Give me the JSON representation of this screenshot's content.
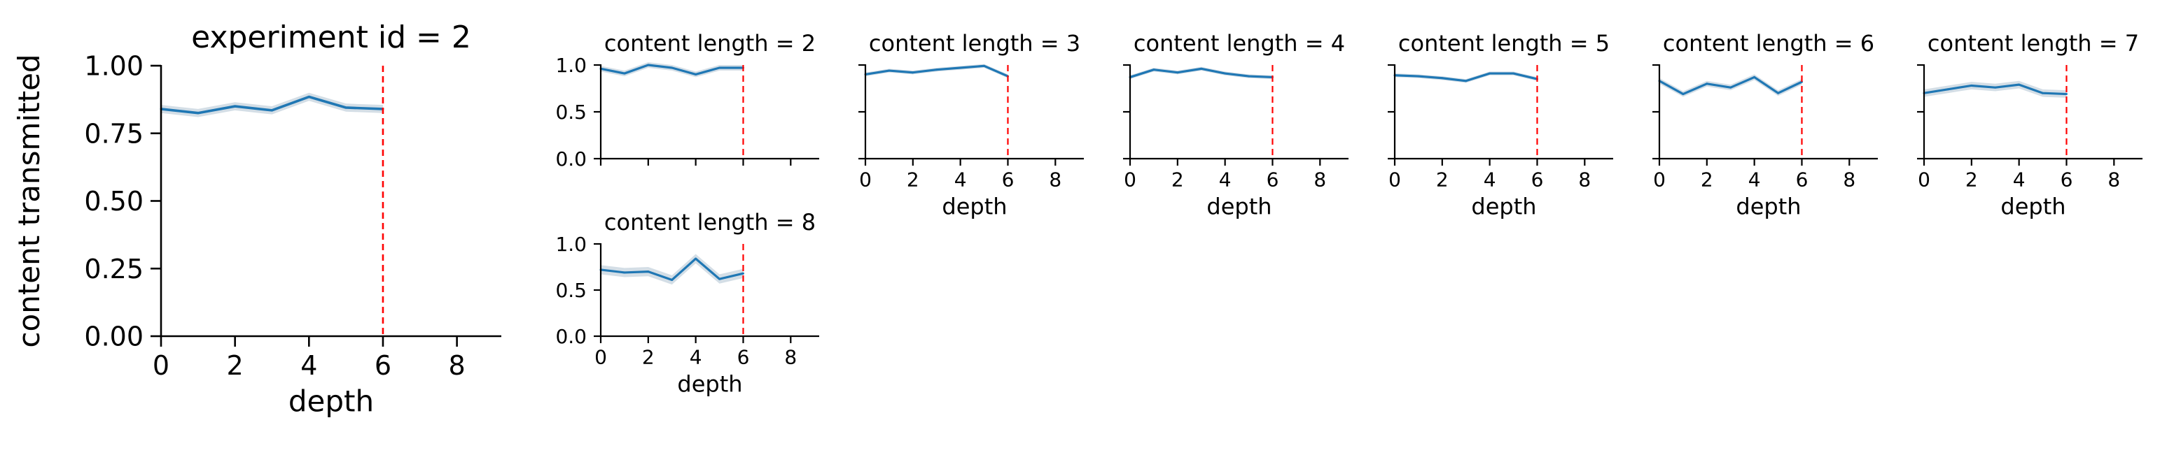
{
  "chart_data": [
    {
      "type": "line",
      "title": "experiment id = 2",
      "xlabel": "depth",
      "ylabel": "content transmitted",
      "xlim": [
        0,
        9.2
      ],
      "ylim": [
        0,
        1
      ],
      "xticks": [
        0,
        2,
        4,
        6,
        8
      ],
      "xtick_labels": [
        "0",
        "2",
        "4",
        "6",
        "8"
      ],
      "yticks": [
        0,
        0.25,
        0.5,
        0.75,
        1
      ],
      "ytick_labels": [
        "0.00",
        "0.25",
        "0.50",
        "0.75",
        "1.00"
      ],
      "vline": 6,
      "x": [
        0,
        1,
        2,
        3,
        4,
        5,
        6
      ],
      "y": [
        0.84,
        0.825,
        0.85,
        0.835,
        0.885,
        0.845,
        0.84
      ],
      "band": 0.015,
      "colors": {
        "line": "#1f77b4",
        "band": "#c6d3de",
        "vline": "#ff0000"
      }
    },
    {
      "type": "line",
      "title": "content length = 2",
      "xlabel": "",
      "ylabel": "",
      "xlim": [
        0,
        9.2
      ],
      "ylim": [
        0,
        1
      ],
      "xticks": [
        0,
        2,
        4,
        6,
        8
      ],
      "xtick_labels": [],
      "yticks": [
        0,
        0.5,
        1
      ],
      "ytick_labels": [
        "0.0",
        "0.5",
        "1.0"
      ],
      "vline": 6,
      "x": [
        0,
        1,
        2,
        3,
        4,
        5,
        6
      ],
      "y": [
        0.96,
        0.91,
        1.0,
        0.97,
        0.9,
        0.97,
        0.97
      ],
      "band": 0.03,
      "colors": {
        "line": "#1f77b4",
        "band": "#c6d3de",
        "vline": "#ff0000"
      }
    },
    {
      "type": "line",
      "title": "content length = 3",
      "xlabel": "depth",
      "ylabel": "",
      "xlim": [
        0,
        9.2
      ],
      "ylim": [
        0,
        1
      ],
      "xticks": [
        0,
        2,
        4,
        6,
        8
      ],
      "xtick_labels": [
        "0",
        "2",
        "4",
        "6",
        "8"
      ],
      "yticks": [
        0,
        0.5,
        1
      ],
      "ytick_labels": [],
      "vline": 6,
      "x": [
        0,
        1,
        2,
        3,
        4,
        5,
        6
      ],
      "y": [
        0.9,
        0.94,
        0.92,
        0.95,
        0.97,
        0.99,
        0.88
      ],
      "band": 0.02,
      "colors": {
        "line": "#1f77b4",
        "band": "#c6d3de",
        "vline": "#ff0000"
      }
    },
    {
      "type": "line",
      "title": "content length = 4",
      "xlabel": "depth",
      "ylabel": "",
      "xlim": [
        0,
        9.2
      ],
      "ylim": [
        0,
        1
      ],
      "xticks": [
        0,
        2,
        4,
        6,
        8
      ],
      "xtick_labels": [
        "0",
        "2",
        "4",
        "6",
        "8"
      ],
      "yticks": [
        0,
        0.5,
        1
      ],
      "ytick_labels": [],
      "vline": 6,
      "x": [
        0,
        1,
        2,
        3,
        4,
        5,
        6
      ],
      "y": [
        0.87,
        0.95,
        0.92,
        0.96,
        0.91,
        0.88,
        0.87
      ],
      "band": 0.02,
      "colors": {
        "line": "#1f77b4",
        "band": "#c6d3de",
        "vline": "#ff0000"
      }
    },
    {
      "type": "line",
      "title": "content length = 5",
      "xlabel": "depth",
      "ylabel": "",
      "xlim": [
        0,
        9.2
      ],
      "ylim": [
        0,
        1
      ],
      "xticks": [
        0,
        2,
        4,
        6,
        8
      ],
      "xtick_labels": [
        "0",
        "2",
        "4",
        "6",
        "8"
      ],
      "yticks": [
        0,
        0.5,
        1
      ],
      "ytick_labels": [],
      "vline": 6,
      "x": [
        0,
        1,
        2,
        3,
        4,
        5,
        6
      ],
      "y": [
        0.89,
        0.88,
        0.86,
        0.83,
        0.91,
        0.91,
        0.85
      ],
      "band": 0.02,
      "colors": {
        "line": "#1f77b4",
        "band": "#c6d3de",
        "vline": "#ff0000"
      }
    },
    {
      "type": "line",
      "title": "content length = 6",
      "xlabel": "depth",
      "ylabel": "",
      "xlim": [
        0,
        9.2
      ],
      "ylim": [
        0,
        1
      ],
      "xticks": [
        0,
        2,
        4,
        6,
        8
      ],
      "xtick_labels": [
        "0",
        "2",
        "4",
        "6",
        "8"
      ],
      "yticks": [
        0,
        0.5,
        1
      ],
      "ytick_labels": [],
      "vline": 6,
      "x": [
        0,
        1,
        2,
        3,
        4,
        5,
        6
      ],
      "y": [
        0.83,
        0.69,
        0.8,
        0.76,
        0.87,
        0.7,
        0.82
      ],
      "band": 0.03,
      "colors": {
        "line": "#1f77b4",
        "band": "#c6d3de",
        "vline": "#ff0000"
      }
    },
    {
      "type": "line",
      "title": "content length = 7",
      "xlabel": "depth",
      "ylabel": "",
      "xlim": [
        0,
        9.2
      ],
      "ylim": [
        0,
        1
      ],
      "xticks": [
        0,
        2,
        4,
        6,
        8
      ],
      "xtick_labels": [
        "0",
        "2",
        "4",
        "6",
        "8"
      ],
      "yticks": [
        0,
        0.5,
        1
      ],
      "ytick_labels": [],
      "vline": 6,
      "x": [
        0,
        1,
        2,
        3,
        4,
        5,
        6
      ],
      "y": [
        0.7,
        0.74,
        0.78,
        0.76,
        0.79,
        0.7,
        0.69
      ],
      "band": 0.04,
      "colors": {
        "line": "#1f77b4",
        "band": "#c6d3de",
        "vline": "#ff0000"
      }
    },
    {
      "type": "line",
      "title": "content length = 8",
      "xlabel": "depth",
      "ylabel": "",
      "xlim": [
        0,
        9.2
      ],
      "ylim": [
        0,
        1
      ],
      "xticks": [
        0,
        2,
        4,
        6,
        8
      ],
      "xtick_labels": [
        "0",
        "2",
        "4",
        "6",
        "8"
      ],
      "yticks": [
        0,
        0.5,
        1
      ],
      "ytick_labels": [
        "0.0",
        "0.5",
        "1.0"
      ],
      "vline": 6,
      "x": [
        0,
        1,
        2,
        3,
        4,
        5,
        6
      ],
      "y": [
        0.72,
        0.69,
        0.7,
        0.61,
        0.84,
        0.62,
        0.68
      ],
      "band": 0.05,
      "colors": {
        "line": "#1f77b4",
        "band": "#c6d3de",
        "vline": "#ff0000"
      }
    }
  ]
}
